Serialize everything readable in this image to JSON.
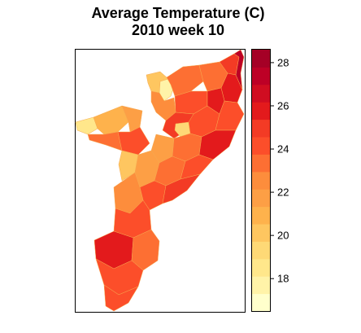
{
  "title": {
    "line1": "Average Temperature (C)",
    "line2": "2010 week 10"
  },
  "legend": {
    "type": "color-scale",
    "min": 16.5,
    "max": 28.6,
    "tick_labels": [
      "18",
      "20",
      "22",
      "24",
      "26",
      "28"
    ],
    "tick_values": [
      18,
      20,
      22,
      24,
      26,
      28
    ],
    "colors": [
      "#ffffcc",
      "#fff3a8",
      "#ffe78b",
      "#fed976",
      "#fec660",
      "#feb24c",
      "#fd9f45",
      "#fd8d3c",
      "#fd6f33",
      "#fc4e2a",
      "#f33b25",
      "#e31a1c",
      "#d00d21",
      "#bd0026",
      "#a50026"
    ]
  },
  "map_regions": [
    {
      "value": 20.5
    },
    {
      "value": 17.5
    },
    {
      "value": 23
    },
    {
      "value": 22.5
    },
    {
      "value": 23.5
    },
    {
      "value": 24
    },
    {
      "value": 25
    },
    {
      "value": 26
    },
    {
      "value": 27.5
    },
    {
      "value": 25.5
    },
    {
      "value": 18.5
    },
    {
      "value": 21
    },
    {
      "value": 22
    },
    {
      "value": 23.5
    },
    {
      "value": 24.5
    },
    {
      "value": 25
    },
    {
      "value": 19
    },
    {
      "value": 24
    },
    {
      "value": 22
    },
    {
      "value": 23
    },
    {
      "value": 24.5
    },
    {
      "value": 25.5
    },
    {
      "value": 20
    },
    {
      "value": 21.5
    },
    {
      "value": 23
    },
    {
      "value": 24
    },
    {
      "value": 24.5
    },
    {
      "value": 25
    },
    {
      "value": 22.5
    },
    {
      "value": 24
    },
    {
      "value": 25.5
    },
    {
      "value": 23.5
    },
    {
      "value": 24
    },
    {
      "value": 24.5
    }
  ]
}
